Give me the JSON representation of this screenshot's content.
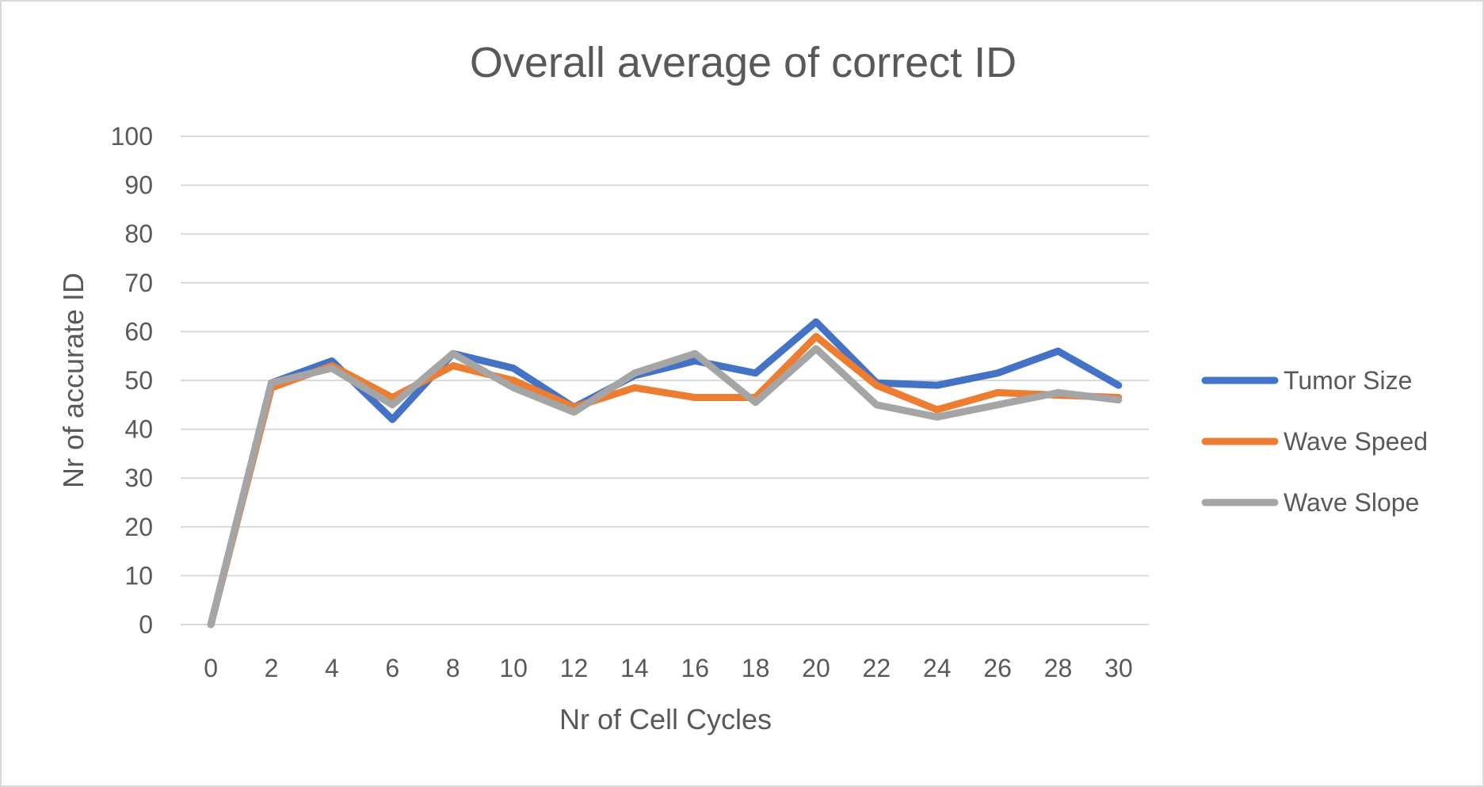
{
  "chart_data": {
    "type": "line",
    "title": "Overall average of correct ID",
    "xlabel": "Nr of Cell Cycles",
    "ylabel": "Nr of accurate ID",
    "x": [
      0,
      2,
      4,
      6,
      8,
      10,
      12,
      14,
      16,
      18,
      20,
      22,
      24,
      26,
      28,
      30
    ],
    "ylim": [
      0,
      100
    ],
    "yticks": [
      0,
      10,
      20,
      30,
      40,
      50,
      60,
      70,
      80,
      90,
      100
    ],
    "grid": true,
    "legend": "right",
    "series": [
      {
        "name": "Tumor Size",
        "color": "#4472c4",
        "values": [
          0,
          49.5,
          54,
          42,
          55.5,
          52.5,
          44.5,
          51,
          54,
          51.5,
          62,
          49.5,
          49,
          51.5,
          56,
          49
        ]
      },
      {
        "name": "Wave Speed",
        "color": "#ed7d31",
        "values": [
          0,
          48.5,
          53,
          46.5,
          53,
          50,
          44.5,
          48.5,
          46.5,
          46.5,
          59,
          49,
          44,
          47.5,
          47,
          46.5
        ]
      },
      {
        "name": "Wave Slope",
        "color": "#a5a5a5",
        "values": [
          0,
          49.5,
          52.5,
          45,
          55.5,
          48.5,
          43.5,
          51.5,
          55.5,
          45.5,
          56.5,
          45,
          42.5,
          45,
          47.5,
          46
        ]
      }
    ]
  }
}
